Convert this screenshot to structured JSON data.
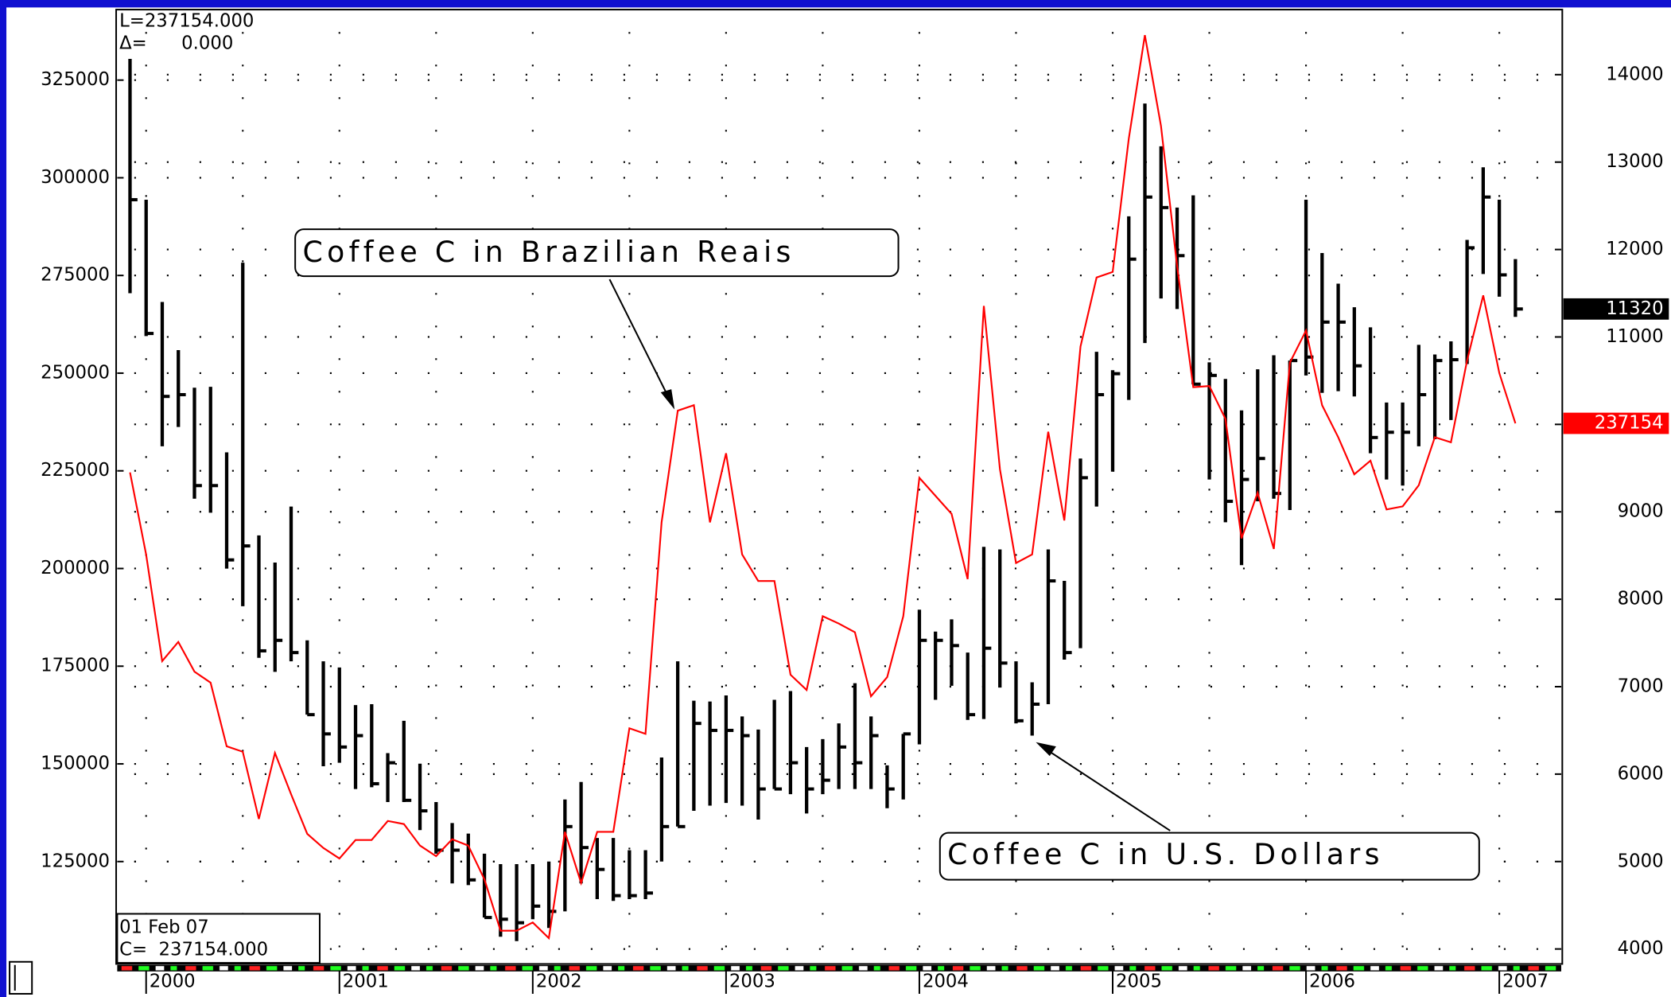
{
  "chart_data": {
    "type": "ohlc",
    "info_lines": [
      "L=237154.000",
      "Δ=      0.000"
    ],
    "date_box": [
      "01 Feb 07",
      "C=  237154.000"
    ],
    "categories": [
      null,
      "2000",
      null,
      null,
      null,
      null,
      null,
      null,
      null,
      null,
      null,
      null,
      null,
      "2001",
      null,
      null,
      null,
      null,
      null,
      null,
      null,
      null,
      null,
      null,
      null,
      "2002",
      null,
      null,
      null,
      null,
      null,
      null,
      null,
      null,
      null,
      null,
      null,
      "2003",
      null,
      null,
      null,
      null,
      null,
      null,
      null,
      null,
      null,
      null,
      null,
      "2004",
      null,
      null,
      null,
      null,
      null,
      null,
      null,
      null,
      null,
      null,
      null,
      "2005",
      null,
      null,
      null,
      null,
      null,
      null,
      null,
      null,
      null,
      null,
      null,
      "2006",
      null,
      null,
      null,
      null,
      null,
      null,
      null,
      null,
      null,
      null,
      null,
      "2007",
      null
    ],
    "series": [
      {
        "name": "Coffee C in U.S. Dollars",
        "type": "ohlc",
        "axis": "y2",
        "color": "#000000",
        "high": [
          14180,
          12570,
          11400,
          10850,
          10420,
          10430,
          9680,
          11850,
          8730,
          8420,
          9060,
          7530,
          7290,
          7220,
          6790,
          6800,
          6240,
          6610,
          6120,
          5680,
          5440,
          5320,
          5090,
          4970,
          4970,
          4970,
          5000,
          5710,
          5910,
          5270,
          5270,
          5130,
          5130,
          6190,
          7290,
          6840,
          6830,
          6900,
          6660,
          6510,
          6850,
          6950,
          6310,
          6400,
          6580,
          7040,
          6660,
          6100,
          6460,
          7880,
          7630,
          7770,
          7390,
          8600,
          8570,
          7290,
          7050,
          8570,
          8210,
          9610,
          10830,
          10620,
          12380,
          13670,
          13180,
          12480,
          12620,
          10710,
          10520,
          10160,
          10630,
          10790,
          10730,
          12570,
          11960,
          11610,
          11340,
          11110,
          10250,
          10250,
          10910,
          10800,
          10950,
          12110,
          12940,
          12570,
          11890
        ],
        "low": [
          11500,
          11010,
          9750,
          9970,
          9150,
          8990,
          8350,
          7920,
          7330,
          7170,
          7290,
          6680,
          6090,
          6130,
          5830,
          5850,
          5680,
          5680,
          5360,
          5090,
          4750,
          4730,
          4360,
          4140,
          4090,
          4340,
          4240,
          4430,
          4750,
          4570,
          4550,
          4570,
          4570,
          5000,
          5400,
          5580,
          5640,
          5670,
          5640,
          5480,
          5830,
          5770,
          5550,
          5770,
          5830,
          5830,
          5830,
          5610,
          5710,
          6340,
          6850,
          7010,
          6620,
          6630,
          6990,
          6580,
          6440,
          6800,
          7310,
          7440,
          9060,
          9460,
          10280,
          10930,
          11440,
          11320,
          10460,
          9370,
          8880,
          8390,
          9120,
          9150,
          9020,
          10560,
          10360,
          10380,
          10320,
          9670,
          9370,
          9300,
          9750,
          9830,
          10050,
          10690,
          11720,
          11460,
          11230
        ],
        "close": [
          12570,
          11040,
          10320,
          10340,
          9300,
          9300,
          8450,
          8610,
          7410,
          7530,
          7390,
          6680,
          6460,
          6310,
          6440,
          5890,
          6130,
          5700,
          5580,
          5130,
          5130,
          4790,
          4360,
          4340,
          4300,
          4490,
          4430,
          5400,
          5160,
          4910,
          4610,
          4610,
          4640,
          5400,
          5400,
          6580,
          6500,
          6500,
          6440,
          5830,
          5830,
          6130,
          5830,
          5930,
          6310,
          6130,
          6440,
          5830,
          6460,
          7530,
          7530,
          7470,
          6680,
          7440,
          7270,
          6610,
          6800,
          8210,
          7390,
          9390,
          10340,
          10580,
          11890,
          12600,
          12480,
          11930,
          10460,
          10560,
          9120,
          9370,
          9610,
          9210,
          10730,
          10770,
          11170,
          11170,
          10670,
          9850,
          9910,
          9910,
          10340,
          10730,
          10740,
          12020,
          12600,
          11710,
          11320
        ]
      },
      {
        "name": "Coffee C in Brazilian Reais",
        "type": "line",
        "color": "#ff0000",
        "values": [
          224600,
          203600,
          176300,
          181200,
          173600,
          170800,
          154500,
          153100,
          135900,
          152800,
          142200,
          132100,
          128500,
          125800,
          130500,
          130500,
          135400,
          134600,
          129100,
          126400,
          130700,
          129100,
          120400,
          107300,
          107300,
          109400,
          105400,
          132600,
          119500,
          132600,
          132600,
          159100,
          157700,
          211800,
          240400,
          241800,
          211800,
          229500,
          203600,
          196800,
          196800,
          172800,
          168900,
          187800,
          185900,
          183700,
          167300,
          172200,
          187800,
          223200,
          218600,
          214000,
          197300,
          267200,
          225400,
          201400,
          203600,
          235000,
          212300,
          256800,
          274500,
          275900,
          310000,
          336500,
          313300,
          277300,
          246400,
          246700,
          238300,
          207700,
          219400,
          205000,
          252700,
          260900,
          241800,
          233600,
          224100,
          227600,
          215100,
          215900,
          221300,
          233600,
          232300,
          253300,
          269900,
          250000,
          237154
        ]
      }
    ],
    "ylim": [
      99070,
      342770
    ],
    "yticks": [
      125000,
      150000,
      175000,
      200000,
      225000,
      250000,
      275000,
      300000,
      325000
    ],
    "y2lim": [
      3841,
      14732
    ],
    "y2ticks": [
      4000,
      5000,
      6000,
      7000,
      8000,
      9000,
      10000,
      11000,
      12000,
      13000,
      14000
    ],
    "grid": true
  }
}
